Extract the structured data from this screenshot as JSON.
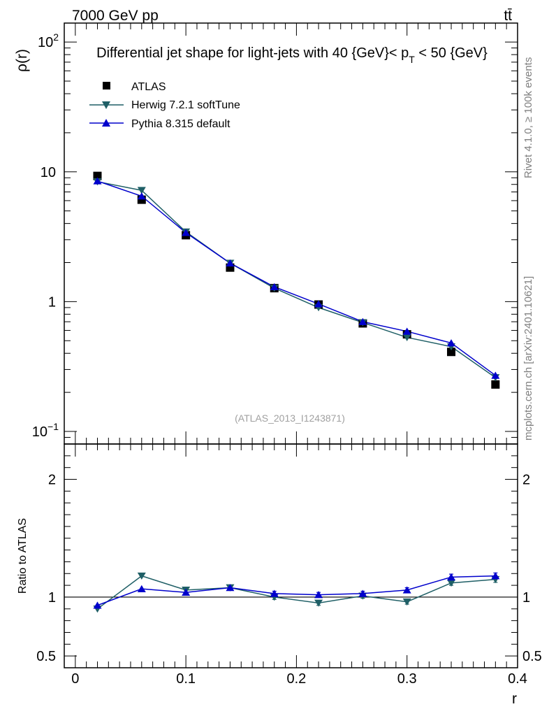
{
  "header": {
    "left": "7000 GeV pp",
    "right": "tt̄",
    "side_top": "Rivet 4.1.0, ≥ 100k events",
    "side_bottom": "mcplots.cern.ch [arXiv:2401.10621]"
  },
  "colors": {
    "atlas": "#000000",
    "herwig": "#1f5f66",
    "pythia": "#0000cc"
  },
  "chart_data": {
    "type": "scatter",
    "title": "Differential jet shape for light-jets with 40 {GeV}< p_T < 50 {GeV}",
    "title_main": "Differential jet shape for light-jets with 40 {GeV}< p",
    "title_sub": "T",
    "title_tail": " < 50 {GeV}",
    "watermark": "(ATLAS_2013_I1243871)",
    "xlabel": "r",
    "ylabel": "ρ(r)",
    "ratio_ylabel": "Ratio to ATLAS",
    "xlim": [
      -0.01,
      0.4
    ],
    "ylim": [
      0.08,
      140
    ],
    "yscale": "log",
    "ratio_ylim": [
      0.4,
      2.3
    ],
    "x": [
      0.02,
      0.06,
      0.1,
      0.14,
      0.18,
      0.22,
      0.26,
      0.3,
      0.34,
      0.38
    ],
    "x_ticks": [
      0,
      0.1,
      0.2,
      0.3,
      0.4
    ],
    "x_tick_labels": [
      "0",
      "0.1",
      "0.2",
      "0.3",
      "0.4"
    ],
    "y_ticks": [
      {
        "value": 100,
        "base": "10",
        "exp": "2"
      },
      {
        "value": 10,
        "base": "10",
        "exp": ""
      },
      {
        "value": 1,
        "base": "1",
        "exp": ""
      },
      {
        "value": 0.1,
        "base": "10",
        "exp": "−1"
      }
    ],
    "ratio_ticks": [
      {
        "value": 2,
        "label": "2"
      },
      {
        "value": 1,
        "label": "1"
      },
      {
        "value": 0.5,
        "label": "0.5"
      }
    ],
    "series": [
      {
        "name": "ATLAS",
        "marker": "square",
        "values": [
          9.3,
          6.1,
          3.25,
          1.83,
          1.27,
          0.95,
          0.68,
          0.56,
          0.41,
          0.23
        ]
      },
      {
        "name": "Herwig 7.2.1 softTune",
        "marker": "triangle-down",
        "values": [
          8.4,
          7.2,
          3.45,
          1.98,
          1.27,
          0.9,
          0.69,
          0.53,
          0.45,
          0.26
        ]
      },
      {
        "name": "Pythia 8.315 default",
        "marker": "triangle-up",
        "values": [
          8.5,
          6.5,
          3.4,
          1.98,
          1.3,
          0.96,
          0.7,
          0.59,
          0.48,
          0.27
        ]
      }
    ],
    "ratios": [
      {
        "name": "Herwig 7.2.1 softTune",
        "values": [
          0.9,
          1.18,
          1.06,
          1.08,
          1.0,
          0.95,
          1.01,
          0.96,
          1.12,
          1.15
        ],
        "errors": [
          0.0,
          0.0,
          0.0,
          0.0,
          0.02,
          0.02,
          0.02,
          0.02,
          0.02,
          0.025
        ]
      },
      {
        "name": "Pythia 8.315 default",
        "values": [
          0.93,
          1.07,
          1.04,
          1.08,
          1.03,
          1.02,
          1.03,
          1.06,
          1.17,
          1.18
        ],
        "errors": [
          0.0,
          0.0,
          0.0,
          0.0,
          0.02,
          0.02,
          0.02,
          0.02,
          0.025,
          0.025
        ]
      }
    ],
    "legend": [
      "ATLAS",
      "Herwig 7.2.1 softTune",
      "Pythia 8.315 default"
    ]
  }
}
